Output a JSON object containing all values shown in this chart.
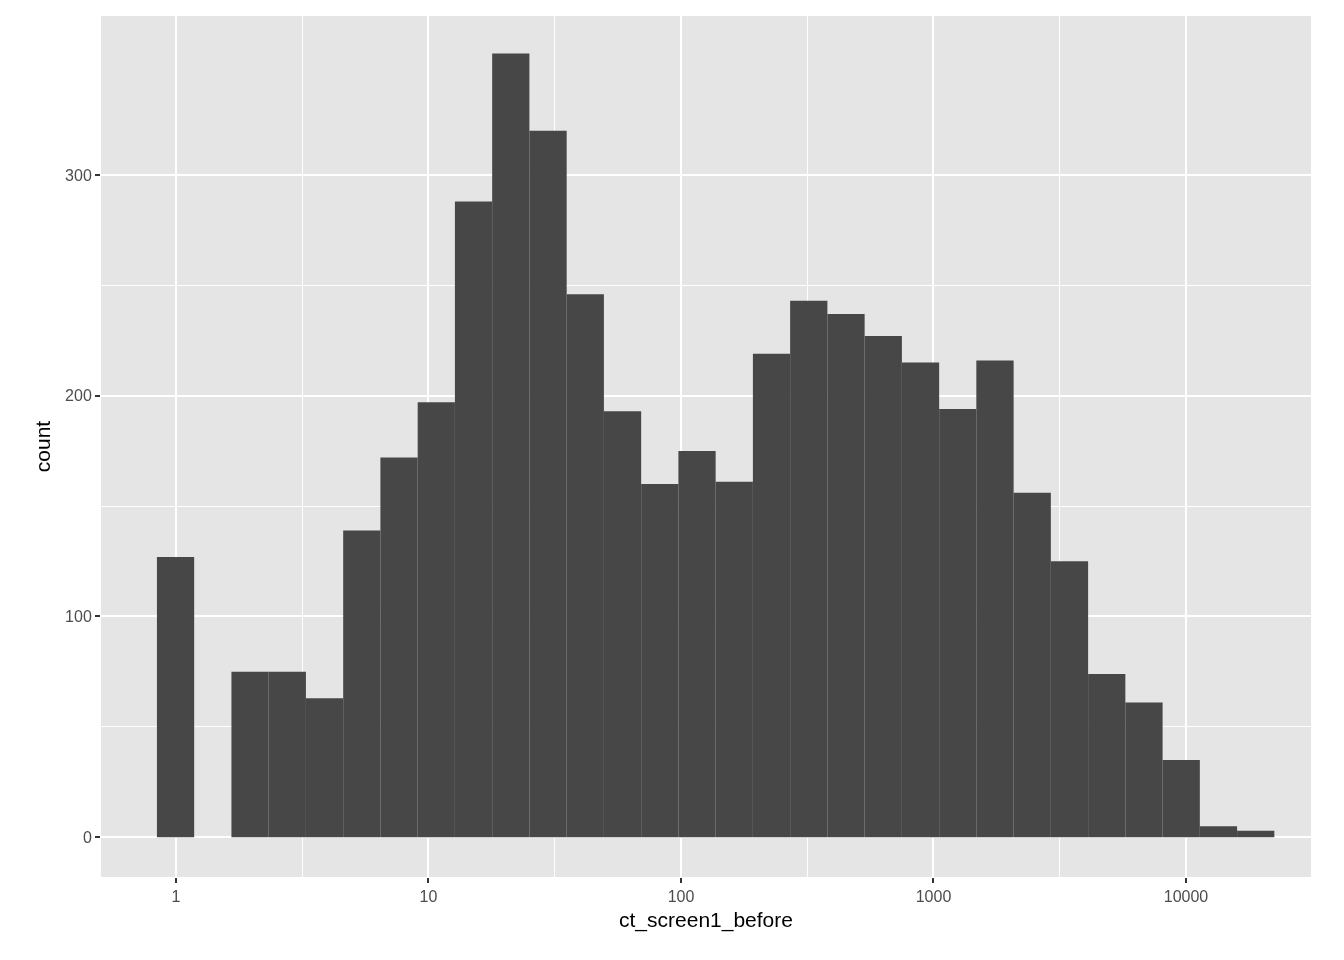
{
  "chart_data": {
    "type": "histogram",
    "xlabel": "ct_screen1_before",
    "ylabel": "count",
    "log": "x",
    "grid": true,
    "color": "#474747",
    "bins": [
      0.841,
      1.181,
      1.659,
      2.33,
      3.272,
      4.596,
      6.453,
      9.065,
      12.73,
      17.88,
      25.11,
      35.27,
      49.53,
      69.56,
      97.7,
      137.2,
      192.7,
      270.6,
      380.1,
      533.8,
      749.7,
      1053,
      1478,
      2077,
      2916,
      4096,
      5752,
      8078,
      11345,
      15933,
      22377
    ],
    "values": [
      127,
      0,
      75,
      75,
      63,
      139,
      172,
      197,
      288,
      355,
      320,
      246,
      193,
      160,
      175,
      161,
      219,
      243,
      237,
      227,
      215,
      194,
      216,
      156,
      125,
      74,
      61,
      35,
      5,
      3
    ],
    "xlim": [
      0.505,
      31260
    ],
    "ylim": [
      -18,
      372
    ],
    "xticks": [
      1,
      10,
      100,
      1000,
      10000
    ],
    "yticks": [
      0,
      100,
      200,
      300
    ]
  }
}
